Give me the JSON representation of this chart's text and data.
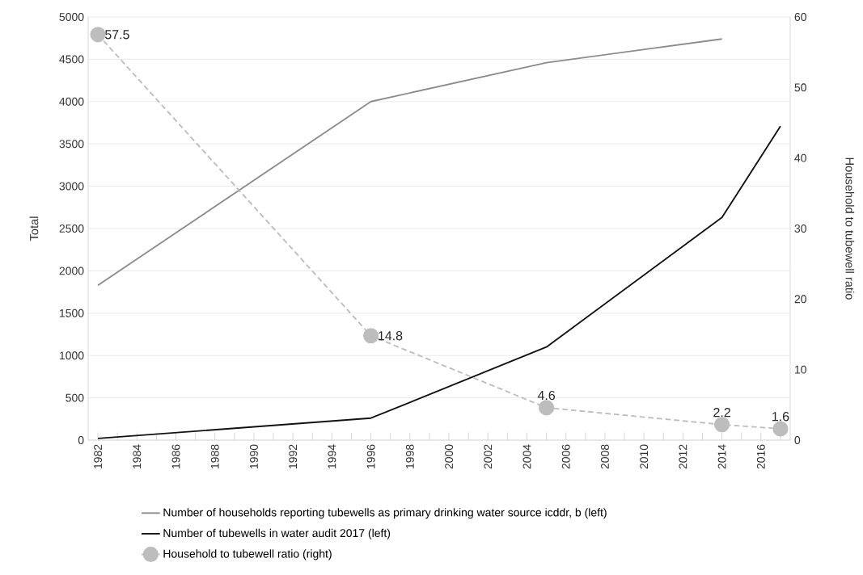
{
  "chart_data": {
    "type": "line",
    "ylabel": "Total",
    "y2label": "Household to tubewell ratio",
    "x": [
      1982,
      1996,
      2005,
      2014,
      2017
    ],
    "xlim": [
      1981.5,
      2017.5
    ],
    "xticks": [
      1982,
      {
        "value": 1983,
        "label": null
      },
      1984,
      {
        "value": 1985,
        "label": null
      },
      1986,
      {
        "value": 1987,
        "label": null
      },
      1988,
      {
        "value": 1989,
        "label": null
      },
      1990,
      {
        "value": 1991,
        "label": null
      },
      1992,
      {
        "value": 1993,
        "label": null
      },
      1994,
      {
        "value": 1995,
        "label": null
      },
      1996,
      {
        "value": 1997,
        "label": null
      },
      1998,
      {
        "value": 1999,
        "label": null
      },
      2000,
      {
        "value": 2001,
        "label": null
      },
      2002,
      {
        "value": 2003,
        "label": null
      },
      2004,
      {
        "value": 2005,
        "label": null
      },
      2006,
      {
        "value": 2007,
        "label": null
      },
      2008,
      {
        "value": 2009,
        "label": null
      },
      2010,
      {
        "value": 2011,
        "label": null
      },
      2012,
      {
        "value": 2013,
        "label": null
      },
      2014,
      {
        "value": 2015,
        "label": null
      },
      2016,
      {
        "value": 2017,
        "label": null
      }
    ],
    "ylim": [
      0,
      5000
    ],
    "yticks": [
      0,
      500,
      1000,
      1500,
      2000,
      2500,
      3000,
      3500,
      4000,
      4500,
      5000
    ],
    "y2lim": [
      0,
      60
    ],
    "y2ticks": [
      0,
      10,
      20,
      30,
      40,
      50,
      60
    ],
    "grid": "y",
    "legend": "bottom",
    "series": [
      {
        "name": "Number of households reporting tubewells as primary drinking water source icddr, b (left)",
        "color": "#8c8c8c",
        "values": [
          1830,
          4000,
          4460,
          4740,
          null
        ],
        "line_style": "solid",
        "marker": "none"
      },
      {
        "name": "Number of tubewells in water audit 2017 (left)",
        "color": "#111111",
        "values": [
          20,
          260,
          1100,
          2630,
          3710
        ],
        "line_style": "solid",
        "marker": "none"
      },
      {
        "name": "Household to tubewell ratio (right)",
        "color": "#bdbdbd",
        "values": [
          57.5,
          14.8,
          4.6,
          2.2,
          1.6
        ],
        "axis": "y2",
        "line_style": "dashed",
        "marker": "circle",
        "data_labels": true
      }
    ]
  }
}
